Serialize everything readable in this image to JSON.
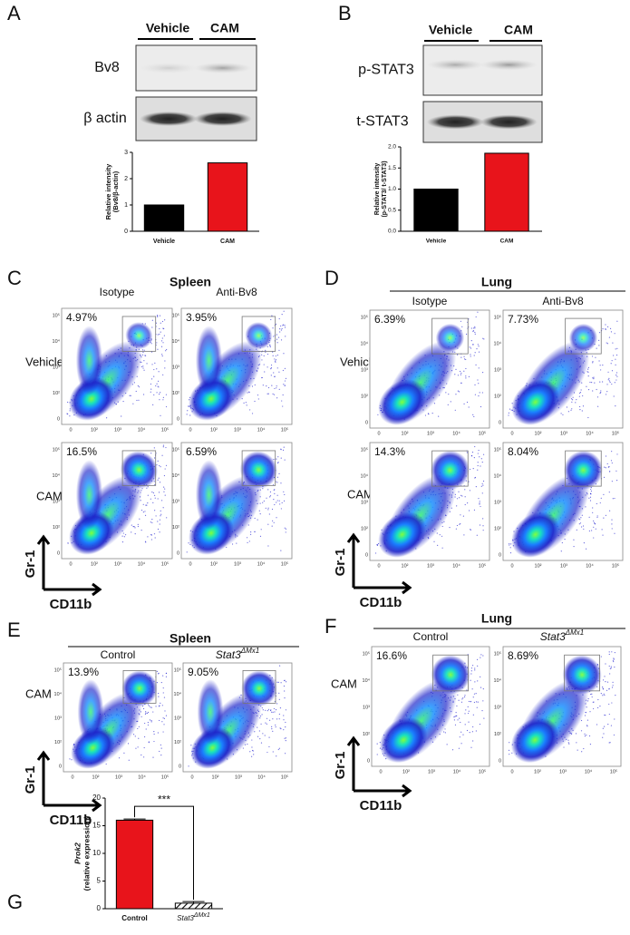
{
  "chart_data": [
    {
      "type": "bar",
      "panel": "A",
      "categories": [
        "Vehicle",
        "CAM"
      ],
      "values": [
        1,
        2.6
      ],
      "colors": [
        "#000000",
        "#e8141b"
      ],
      "ylabel": "Relative intensity",
      "ylabel_sub": "(Bv8/β-actin)",
      "ylim": [
        0,
        3
      ],
      "yticks": [
        0,
        1,
        2,
        3
      ]
    },
    {
      "type": "bar",
      "panel": "B",
      "categories": [
        "Vehicle",
        "CAM"
      ],
      "values": [
        1.0,
        1.85
      ],
      "colors": [
        "#000000",
        "#e8141b"
      ],
      "ylabel": "Relative intensity",
      "ylabel_sub": "(p-STAT3/ t-STAT3)",
      "ylim": [
        0,
        2
      ],
      "yticks": [
        {
          "value": 0,
          "label": "0.0"
        },
        {
          "value": 0.5,
          "label": "0.5"
        },
        {
          "value": 1,
          "label": "1.0"
        },
        {
          "value": 1.5,
          "label": "1.5"
        },
        {
          "value": 2,
          "label": "2.0"
        }
      ]
    },
    {
      "type": "bar",
      "panel": "G",
      "categories": [
        "Control",
        "Stat3"
      ],
      "category_superscripts": [
        null,
        "ΔMx1"
      ],
      "values": [
        16,
        1
      ],
      "errors": [
        0.2,
        0.3
      ],
      "colors": [
        "#e8141b",
        "#000000"
      ],
      "hatch": [
        false,
        true
      ],
      "ylabel": "Prok2",
      "ylabel_sub": "(relative expression)",
      "ylim": [
        0,
        20
      ],
      "yticks": [
        0,
        5,
        10,
        15,
        20
      ],
      "significance": "***"
    }
  ],
  "blot_panels": [
    {
      "letter": "A",
      "lanes": [
        "Vehicle",
        "CAM"
      ],
      "bands": [
        "Bv8",
        "β actin"
      ]
    },
    {
      "letter": "B",
      "lanes": [
        "Vehicle",
        "CAM"
      ],
      "bands": [
        "p-STAT3",
        "t-STAT3"
      ]
    }
  ],
  "flow_panels": [
    {
      "letter": "C",
      "tissue": "Spleen",
      "columns": [
        "Isotype",
        "Anti-Bv8"
      ],
      "rows": [
        "Vehicle",
        "CAM"
      ],
      "percentages": [
        [
          "4.97%",
          "3.95%"
        ],
        [
          "16.5%",
          "6.59%"
        ]
      ],
      "y_axis": "Gr-1",
      "x_axis": "CD11b"
    },
    {
      "letter": "D",
      "tissue": "Lung",
      "columns": [
        "Isotype",
        "Anti-Bv8"
      ],
      "rows": [
        "Vehicle",
        "CAM"
      ],
      "percentages": [
        [
          "6.39%",
          "7.73%"
        ],
        [
          "14.3%",
          "8.04%"
        ]
      ],
      "y_axis": "Gr-1",
      "x_axis": "CD11b"
    },
    {
      "letter": "E",
      "tissue": "Spleen",
      "columns": [
        "Control",
        {
          "base": "Stat3",
          "sup": "ΔMx1"
        }
      ],
      "rows": [
        "CAM"
      ],
      "percentages": [
        [
          "13.9%",
          "9.05%"
        ]
      ],
      "y_axis": "Gr-1",
      "x_axis": "CD11b"
    },
    {
      "letter": "F",
      "tissue": "Lung",
      "columns": [
        "Control",
        {
          "base": "Stat3",
          "sup": "ΔMx1"
        }
      ],
      "rows": [
        "CAM"
      ],
      "percentages": [
        [
          "16.6%",
          "8.69%"
        ]
      ],
      "y_axis": "Gr-1",
      "x_axis": "CD11b"
    }
  ],
  "flow_axis_ticks": {
    "y": [
      "10⁵",
      "10⁴",
      "10³",
      "10²",
      "0"
    ],
    "x": [
      "0",
      "10²",
      "10³",
      "10⁴",
      "10⁵"
    ]
  },
  "letter_G": "G"
}
